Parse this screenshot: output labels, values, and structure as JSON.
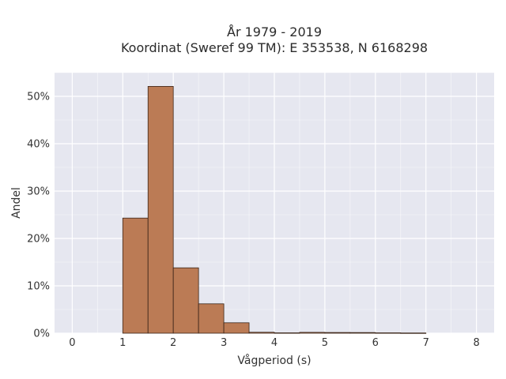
{
  "chart_data": {
    "type": "bar",
    "title_line1": "År 1979 - 2019",
    "title_line2": "Koordinat (Sweref 99 TM): E 353538, N 6168298",
    "xlabel": "Vågperiod (s)",
    "ylabel": "Andel",
    "xlim": [
      -0.35,
      8.35
    ],
    "ylim": [
      0,
      0.55
    ],
    "xticks": [
      0,
      1,
      2,
      3,
      4,
      5,
      6,
      7,
      8
    ],
    "xtick_labels": [
      "0",
      "1",
      "2",
      "3",
      "4",
      "5",
      "6",
      "7",
      "8"
    ],
    "yticks": [
      0,
      0.1,
      0.2,
      0.3,
      0.4,
      0.5
    ],
    "ytick_labels": [
      "0%",
      "10%",
      "20%",
      "30%",
      "40%",
      "50%"
    ],
    "bin_width": 0.5,
    "bins": [
      {
        "x0": 1.0,
        "value": 0.243
      },
      {
        "x0": 1.5,
        "value": 0.521
      },
      {
        "x0": 2.0,
        "value": 0.138
      },
      {
        "x0": 2.5,
        "value": 0.062
      },
      {
        "x0": 3.0,
        "value": 0.022
      },
      {
        "x0": 3.5,
        "value": 0.002
      },
      {
        "x0": 4.0,
        "value": 0.0008
      },
      {
        "x0": 4.5,
        "value": 0.0018
      },
      {
        "x0": 5.0,
        "value": 0.0015
      },
      {
        "x0": 5.5,
        "value": 0.0014
      },
      {
        "x0": 6.0,
        "value": 0.0008
      },
      {
        "x0": 6.5,
        "value": 0.0005
      }
    ],
    "grid": true,
    "colors": {
      "bar_fill": "#bb7b55",
      "bar_stroke": "#3a2418",
      "plot_bg": "#e6e7f0",
      "grid": "#ffffff"
    }
  }
}
